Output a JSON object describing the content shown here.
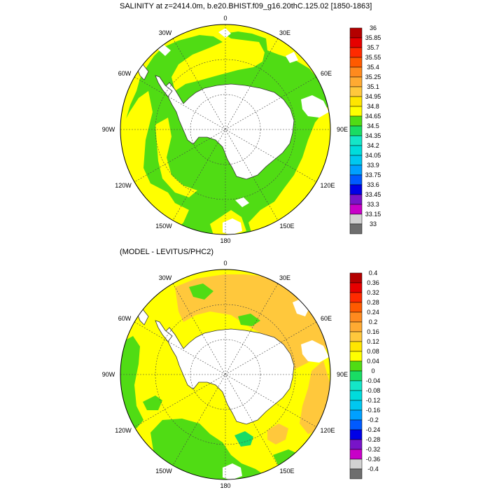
{
  "panels": [
    {
      "title": "SALINITY at z=2414.0m, b.e20.BHIST.f09_g16.20thC.125.02 [1850-1863]",
      "lon_labels": {
        "n0": "0",
        "n30e": "30E",
        "n60e": "60E",
        "n90e": "90E",
        "n120e": "120E",
        "n150e": "150E",
        "n180": "180",
        "n150w": "150W",
        "n120w": "120W",
        "n90w": "90W",
        "n60w": "60W",
        "n30w": "30W"
      },
      "colorbar": {
        "labels": [
          "36",
          "35.85",
          "35.7",
          "35.55",
          "35.4",
          "35.25",
          "35.1",
          "34.95",
          "34.8",
          "34.65",
          "34.5",
          "34.35",
          "34.2",
          "34.05",
          "33.9",
          "33.75",
          "33.6",
          "33.45",
          "33.3",
          "33.15",
          "33"
        ],
        "colors": [
          "#b40000",
          "#e60000",
          "#ff2a00",
          "#ff5a00",
          "#ff8a1e",
          "#ffaa32",
          "#ffc83c",
          "#ffe600",
          "#ffff00",
          "#50dc14",
          "#19dc64",
          "#14e6c8",
          "#00dcdc",
          "#00c8f0",
          "#00a0ff",
          "#005aff",
          "#0000e6",
          "#7814c8",
          "#c800c8",
          "#d2d2d2",
          "#6e6e6e"
        ]
      }
    },
    {
      "title": "(MODEL - LEVITUS/PHC2)",
      "lon_labels": {
        "n0": "0",
        "n30e": "30E",
        "n60e": "60E",
        "n90e": "90E",
        "n120e": "120E",
        "n150e": "150E",
        "n180": "180",
        "n150w": "150W",
        "n120w": "120W",
        "n90w": "90W",
        "n60w": "60W",
        "n30w": "30W"
      },
      "colorbar": {
        "labels": [
          "0.4",
          "0.36",
          "0.32",
          "0.28",
          "0.24",
          "0.2",
          "0.16",
          "0.12",
          "0.08",
          "0.04",
          "0",
          "-0.04",
          "-0.08",
          "-0.12",
          "-0.16",
          "-0.2",
          "-0.24",
          "-0.28",
          "-0.32",
          "-0.36",
          "-0.4"
        ],
        "colors": [
          "#b40000",
          "#e60000",
          "#ff2a00",
          "#ff5a00",
          "#ff8a1e",
          "#ffaa32",
          "#ffc83c",
          "#ffe600",
          "#ffff00",
          "#50dc14",
          "#19dc64",
          "#14e6c8",
          "#00dcdc",
          "#00c8f0",
          "#00a0ff",
          "#005aff",
          "#0000e6",
          "#7814c8",
          "#c800c8",
          "#d2d2d2",
          "#6e6e6e"
        ]
      }
    }
  ],
  "map_colors": {
    "yellow": "#ffff00",
    "green": "#50dc14",
    "orange": "#ffc83c",
    "land": "#ffffff",
    "nodata": "#ffffff",
    "coast": "#333333",
    "grid": "#444444"
  }
}
